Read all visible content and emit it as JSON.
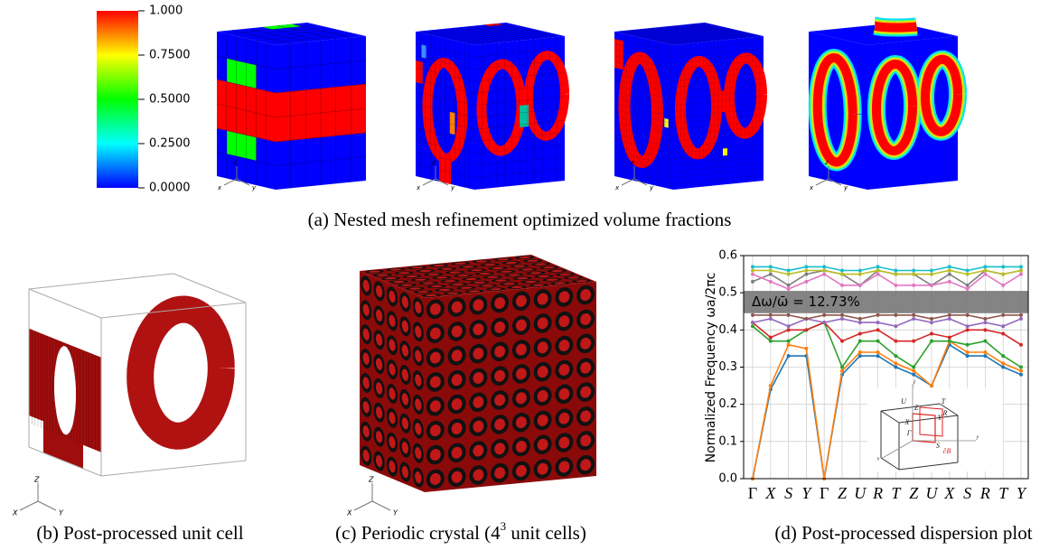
{
  "panel_a": {
    "colorbar": {
      "lim": [
        0,
        1
      ],
      "ticks": [
        {
          "value": 1,
          "label": "1.000"
        },
        {
          "value": 0.75,
          "label": "0.7500"
        },
        {
          "value": 0.5,
          "label": "0.5000"
        },
        {
          "value": 0.25,
          "label": "0.2500"
        },
        {
          "value": 0,
          "label": "0.0000"
        }
      ]
    },
    "triad_labels": [
      "z",
      "x",
      "y"
    ],
    "caption": "(a) Nested mesh refinement optimized volume fractions"
  },
  "panel_b": {
    "triad_labels": [
      "Z",
      "X",
      "Y"
    ],
    "caption": "(b) Post-processed unit cell"
  },
  "panel_c": {
    "triad_labels": [
      "Z",
      "X",
      "Y"
    ],
    "caption": [
      "(c) Periodic crystal (4",
      "3",
      " unit cells)"
    ]
  },
  "panel_d": {
    "chart_data": {
      "type": "line",
      "y_label": "Normalized Frequency ωa/2πc",
      "categories": [
        "Γ",
        "X",
        "S",
        "Y",
        "Γ",
        "Z",
        "U",
        "R",
        "T",
        "Z",
        "U",
        "X",
        "S",
        "R",
        "T",
        "Y"
      ],
      "ylim": [
        0,
        0.6
      ],
      "yticks": [
        {
          "value": 0,
          "label": "0.0"
        },
        0.1,
        0.2,
        0.3,
        0.4,
        0.5,
        0.6
      ],
      "grid": true,
      "band_gap": [
        0.445,
        0.505
      ],
      "annotation": "Δω/ω̄ = 12.73%",
      "series": [
        {
          "color": "#1f77b4",
          "values": [
            0,
            0.24,
            0.33,
            0.33,
            0,
            0.28,
            0.33,
            0.33,
            0.3,
            0.28,
            0.25,
            0.36,
            0.33,
            0.33,
            0.3,
            0.28
          ]
        },
        {
          "color": "#ff7f0e",
          "values": [
            0,
            0.25,
            0.36,
            0.35,
            0,
            0.29,
            0.34,
            0.34,
            0.31,
            0.29,
            0.25,
            0.37,
            0.34,
            0.34,
            0.31,
            0.29
          ]
        },
        {
          "color": "#2ca02c",
          "values": [
            0.41,
            0.37,
            0.37,
            0.4,
            0.42,
            0.3,
            0.37,
            0.37,
            0.33,
            0.3,
            0.37,
            0.37,
            0.36,
            0.37,
            0.33,
            0.3
          ]
        },
        {
          "color": "#d62728",
          "values": [
            0.42,
            0.38,
            0.4,
            0.4,
            0.42,
            0.37,
            0.39,
            0.4,
            0.37,
            0.37,
            0.39,
            0.38,
            0.4,
            0.4,
            0.39,
            0.36
          ]
        },
        {
          "color": "#9467bd",
          "values": [
            0.42,
            0.43,
            0.41,
            0.43,
            0.42,
            0.43,
            0.42,
            0.42,
            0.41,
            0.43,
            0.42,
            0.43,
            0.41,
            0.42,
            0.41,
            0.43
          ]
        },
        {
          "color": "#8c564b",
          "values": [
            0.44,
            0.44,
            0.44,
            0.43,
            0.44,
            0.44,
            0.43,
            0.44,
            0.44,
            0.44,
            0.43,
            0.44,
            0.44,
            0.43,
            0.44,
            0.44
          ]
        },
        {
          "color": "#7f7f7f",
          "values": [
            0.53,
            0.55,
            0.52,
            0.55,
            0.56,
            0.55,
            0.52,
            0.56,
            0.55,
            0.55,
            0.52,
            0.55,
            0.52,
            0.56,
            0.55,
            0.56
          ]
        },
        {
          "color": "#e377c2",
          "values": [
            0.55,
            0.53,
            0.51,
            0.53,
            0.55,
            0.52,
            0.52,
            0.55,
            0.52,
            0.52,
            0.52,
            0.53,
            0.51,
            0.55,
            0.52,
            0.55
          ]
        },
        {
          "color": "#bcbd22",
          "values": [
            0.56,
            0.56,
            0.55,
            0.56,
            0.56,
            0.55,
            0.55,
            0.56,
            0.55,
            0.55,
            0.55,
            0.56,
            0.55,
            0.56,
            0.55,
            0.56
          ]
        },
        {
          "color": "#17becf",
          "values": [
            0.57,
            0.57,
            0.56,
            0.57,
            0.57,
            0.56,
            0.56,
            0.57,
            0.56,
            0.56,
            0.56,
            0.57,
            0.56,
            0.57,
            0.57,
            0.57
          ]
        }
      ],
      "inset_labels": [
        "Γ",
        "X",
        "S",
        "Y",
        "Z",
        "U",
        "R",
        "T",
        "∂B",
        "x",
        "y",
        "z"
      ]
    },
    "caption": "(d) Post-processed dispersion plot"
  }
}
